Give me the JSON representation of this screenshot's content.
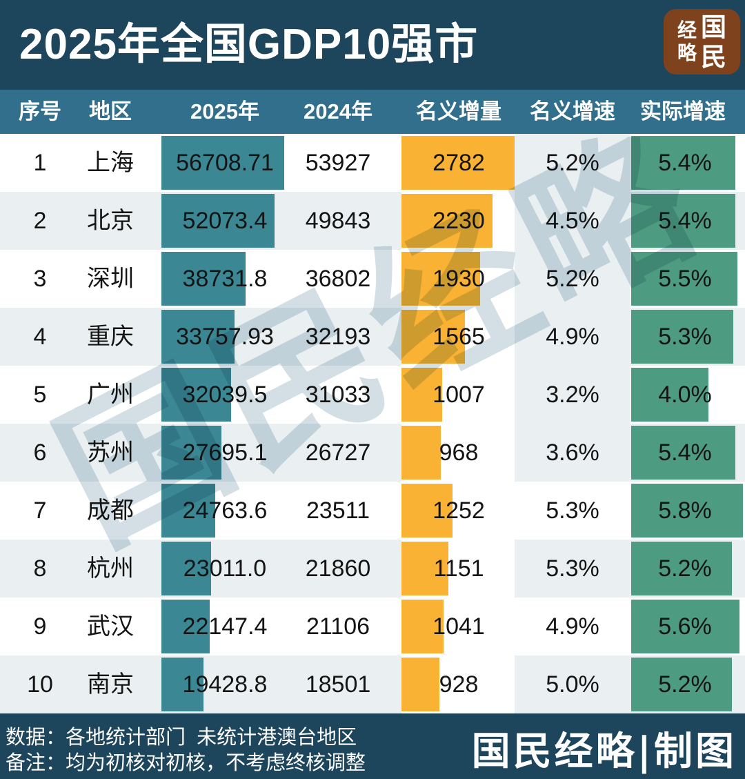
{
  "header": {
    "title": "2025年全国GDP10强市",
    "logo": {
      "name": "国民经略",
      "chars": [
        "经",
        "略",
        "国",
        "民"
      ]
    }
  },
  "table": {
    "columns": [
      "序号",
      "地区",
      "2025年",
      "2024年",
      "名义增量",
      "名义增速",
      "实际增速"
    ],
    "rows": [
      {
        "rank": "1",
        "city": "上海",
        "gdp_2025": "56708.71",
        "gdp_2024": "53927",
        "increment": "2782",
        "nominal_growth": "5.2%",
        "real_growth": "5.4%"
      },
      {
        "rank": "2",
        "city": "北京",
        "gdp_2025": "52073.4",
        "gdp_2024": "49843",
        "increment": "2230",
        "nominal_growth": "4.5%",
        "real_growth": "5.4%"
      },
      {
        "rank": "3",
        "city": "深圳",
        "gdp_2025": "38731.8",
        "gdp_2024": "36802",
        "increment": "1930",
        "nominal_growth": "5.2%",
        "real_growth": "5.5%"
      },
      {
        "rank": "4",
        "city": "重庆",
        "gdp_2025": "33757.93",
        "gdp_2024": "32193",
        "increment": "1565",
        "nominal_growth": "4.9%",
        "real_growth": "5.3%"
      },
      {
        "rank": "5",
        "city": "广州",
        "gdp_2025": "32039.5",
        "gdp_2024": "31033",
        "increment": "1007",
        "nominal_growth": "3.2%",
        "real_growth": "4.0%"
      },
      {
        "rank": "6",
        "city": "苏州",
        "gdp_2025": "27695.1",
        "gdp_2024": "26727",
        "increment": "968",
        "nominal_growth": "3.6%",
        "real_growth": "5.4%"
      },
      {
        "rank": "7",
        "city": "成都",
        "gdp_2025": "24763.6",
        "gdp_2024": "23511",
        "increment": "1252",
        "nominal_growth": "5.3%",
        "real_growth": "5.8%"
      },
      {
        "rank": "8",
        "city": "杭州",
        "gdp_2025": "23011.0",
        "gdp_2024": "21860",
        "increment": "1151",
        "nominal_growth": "5.3%",
        "real_growth": "5.2%"
      },
      {
        "rank": "9",
        "city": "武汉",
        "gdp_2025": "22147.4",
        "gdp_2024": "21106",
        "increment": "1041",
        "nominal_growth": "4.9%",
        "real_growth": "5.6%"
      },
      {
        "rank": "10",
        "city": "南京",
        "gdp_2025": "19428.8",
        "gdp_2024": "18501",
        "increment": "928",
        "nominal_growth": "5.0%",
        "real_growth": "5.2%"
      }
    ]
  },
  "watermark": {
    "text": "国民经略"
  },
  "footer": {
    "line1": "数据：各地统计部门  未统计港澳台地区",
    "line2": "备注：均为初核对初核，不考虑终核调整",
    "signature": "国民经略|制图"
  },
  "colors": {
    "header_bg": "#1d455c",
    "table_header_bg": "#316f8c",
    "gdp_bar": "#3b8894",
    "increment_bar": "#f9b233",
    "real_growth_bar": "#4d9b80",
    "row_alt_bg": "#eaf0f2",
    "logo_bg": "#7e421c",
    "text_dark": "#141414",
    "text_light": "#ffffff"
  },
  "chart_data": {
    "type": "table",
    "title": "2025年全国GDP10强市",
    "columns": [
      "序号",
      "地区",
      "2025年",
      "2024年",
      "名义增量",
      "名义增速",
      "实际增速"
    ],
    "rows": [
      [
        1,
        "上海",
        56708.71,
        53927,
        2782,
        "5.2%",
        "5.4%"
      ],
      [
        2,
        "北京",
        52073.4,
        49843,
        2230,
        "4.5%",
        "5.4%"
      ],
      [
        3,
        "深圳",
        38731.8,
        36802,
        1930,
        "5.2%",
        "5.5%"
      ],
      [
        4,
        "重庆",
        33757.93,
        32193,
        1565,
        "4.9%",
        "5.3%"
      ],
      [
        5,
        "广州",
        32039.5,
        31033,
        1007,
        "3.2%",
        "4.0%"
      ],
      [
        6,
        "苏州",
        27695.1,
        26727,
        968,
        "3.6%",
        "5.4%"
      ],
      [
        7,
        "成都",
        24763.6,
        23511,
        1252,
        "5.3%",
        "5.8%"
      ],
      [
        8,
        "杭州",
        23011.0,
        21860,
        1151,
        "5.3%",
        "5.2%"
      ],
      [
        9,
        "武汉",
        22147.4,
        21106,
        1041,
        "4.9%",
        "5.6%"
      ],
      [
        10,
        "南京",
        19428.8,
        18501,
        928,
        "5.0%",
        "5.2%"
      ]
    ],
    "bar_encodings": [
      {
        "column": "2025年",
        "style": "bar",
        "color": "#3b8894"
      },
      {
        "column": "名义增量",
        "style": "bar",
        "color": "#f9b233"
      },
      {
        "column": "实际增速",
        "style": "bar",
        "color": "#4d9b80"
      }
    ],
    "notes": [
      "数据：各地统计部门  未统计港澳台地区",
      "备注：均为初核对初核，不考虑终核调整"
    ]
  }
}
